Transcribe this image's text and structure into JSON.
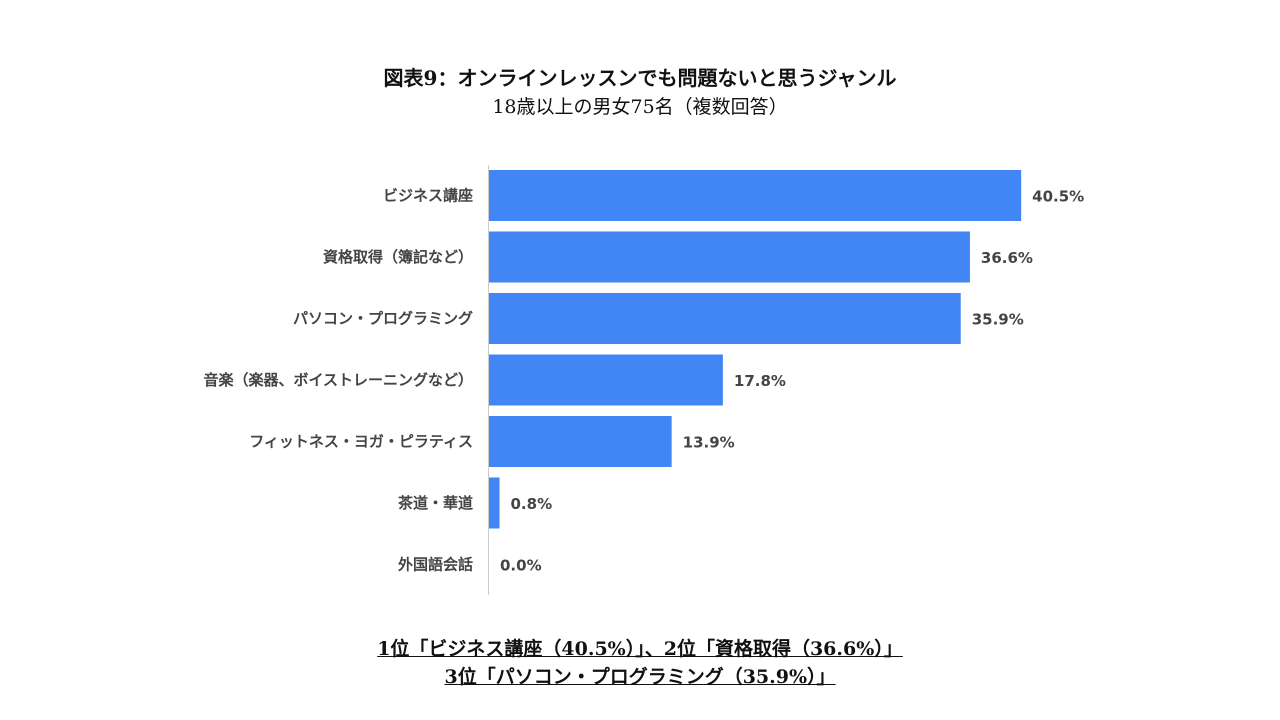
{
  "chart_data": {
    "type": "bar",
    "orientation": "horizontal",
    "title": "図表9：オンラインレッスンでも問題ないと思うジャンル",
    "subtitle": "18歳以上の男女75名（複数回答）",
    "categories": [
      "ビジネス講座",
      "資格取得（簿記など）",
      "パソコン・プログラミング",
      "音楽（楽器、ボイストレーニングなど）",
      "フィットネス・ヨガ・ピラティス",
      "茶道・華道",
      "外国語会話"
    ],
    "values": [
      40.5,
      36.6,
      35.9,
      17.8,
      13.9,
      0.8,
      0.0
    ],
    "value_labels": [
      "40.5%",
      "36.6%",
      "35.9%",
      "17.8%",
      "13.9%",
      "0.8%",
      "0.0%"
    ],
    "unit": "%",
    "xlim": [
      0,
      45
    ],
    "grid": false,
    "bar_color": "#4285f4"
  },
  "footer": {
    "line1": "1位「ビジネス講座（40.5%）」、2位「資格取得（36.6%）」",
    "line2": "3位「パソコン・プログラミング（35.9%）」"
  }
}
